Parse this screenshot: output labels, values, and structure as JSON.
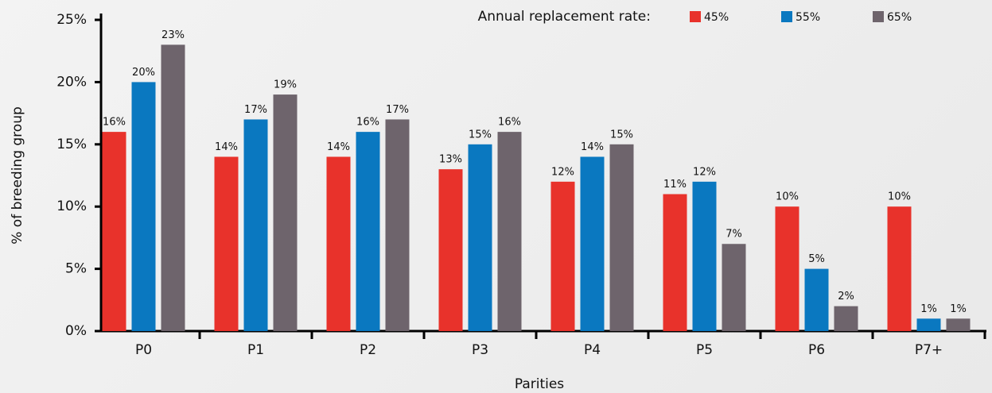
{
  "chart_data": {
    "type": "bar",
    "x_label": "Parities",
    "y_label": "% of breeding group",
    "legend_title": "Annual replacement rate:",
    "categories": [
      "P0",
      "P1",
      "P2",
      "P3",
      "P4",
      "P5",
      "P6",
      "P7+"
    ],
    "series": [
      {
        "name": "45%",
        "color": "#e8322b",
        "values": [
          16,
          14,
          14,
          13,
          12,
          11,
          10,
          10
        ],
        "value_labels": [
          "16%",
          "14%",
          "14%",
          "13%",
          "12%",
          "11%",
          "10%",
          "10%"
        ]
      },
      {
        "name": "55%",
        "color": "#0a78c0",
        "values": [
          20,
          17,
          16,
          15,
          14,
          12,
          5,
          1
        ],
        "value_labels": [
          "20%",
          "17%",
          "16%",
          "15%",
          "14%",
          "12%",
          "5%",
          "1%"
        ]
      },
      {
        "name": "65%",
        "color": "#6e646c",
        "values": [
          23,
          19,
          17,
          16,
          15,
          7,
          2,
          1
        ],
        "value_labels": [
          "23%",
          "19%",
          "17%",
          "16%",
          "15%",
          "7%",
          "2%",
          "1%"
        ]
      }
    ],
    "ylim": [
      0,
      25
    ],
    "yticks": [
      {
        "value": 0,
        "label": "0%"
      },
      {
        "value": 5,
        "label": "5%"
      },
      {
        "value": 10,
        "label": "10%"
      },
      {
        "value": 15,
        "label": "15%"
      },
      {
        "value": 20,
        "label": "20%"
      },
      {
        "value": 25,
        "label": "25%"
      }
    ],
    "grid": false
  }
}
